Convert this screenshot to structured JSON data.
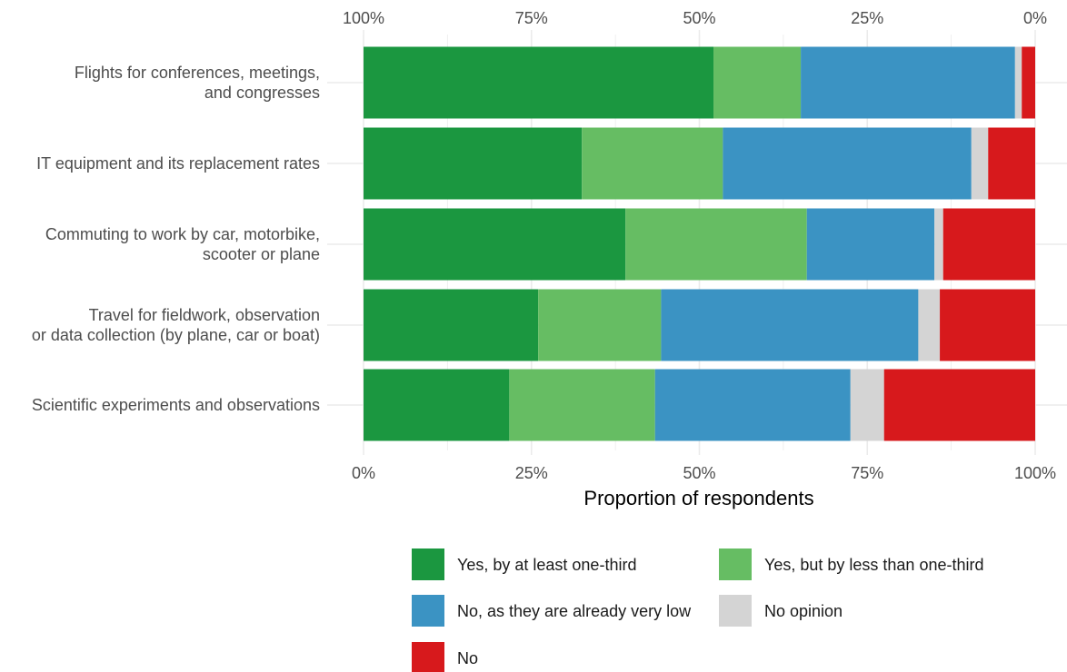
{
  "chart_data": {
    "type": "bar",
    "orientation": "horizontal",
    "stacked": true,
    "normalized": true,
    "categories": [
      [
        "Flights for conferences, meetings,",
        "and congresses"
      ],
      [
        "IT equipment and its replacement rates"
      ],
      [
        "Commuting to work by car, motorbike,",
        "scooter or plane"
      ],
      [
        "Travel for fieldwork, observation",
        "or data collection (by plane, car or boat)"
      ],
      [
        "Scientific experiments and observations"
      ]
    ],
    "series": [
      {
        "name": "Yes, by at least one-third",
        "color": "#1b9740",
        "values": [
          0.521,
          0.325,
          0.39,
          0.26,
          0.217
        ]
      },
      {
        "name": "Yes, but by less than one-third",
        "color": "#66bd63",
        "values": [
          0.13,
          0.21,
          0.27,
          0.183,
          0.217
        ]
      },
      {
        "name": "No, as they are already very low",
        "color": "#3b93c3",
        "values": [
          0.319,
          0.37,
          0.19,
          0.383,
          0.291
        ]
      },
      {
        "name": "No opinion",
        "color": "#d4d4d4",
        "values": [
          0.01,
          0.025,
          0.013,
          0.032,
          0.05
        ]
      },
      {
        "name": "No",
        "color": "#d7191c",
        "values": [
          0.02,
          0.07,
          0.137,
          0.142,
          0.225
        ]
      }
    ],
    "bottom_axis": {
      "ticks": [
        "0%",
        "25%",
        "50%",
        "75%",
        "100%"
      ],
      "label": "Proportion of respondents"
    },
    "top_axis": {
      "ticks": [
        "100%",
        "75%",
        "50%",
        "25%",
        "0%"
      ]
    },
    "xlim": [
      0,
      1
    ],
    "grid": true,
    "legend_position": "bottom"
  }
}
